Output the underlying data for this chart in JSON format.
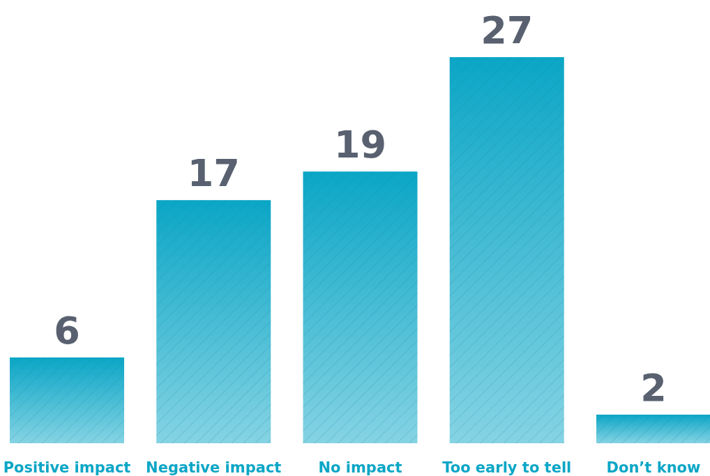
{
  "chart_data": {
    "type": "bar",
    "categories": [
      "Positive impact",
      "Negative impact",
      "No impact",
      "Too early to tell",
      "Don’t know"
    ],
    "values": [
      6,
      17,
      19,
      27,
      2
    ],
    "color": "#0ba6c6",
    "data_labels": true
  }
}
